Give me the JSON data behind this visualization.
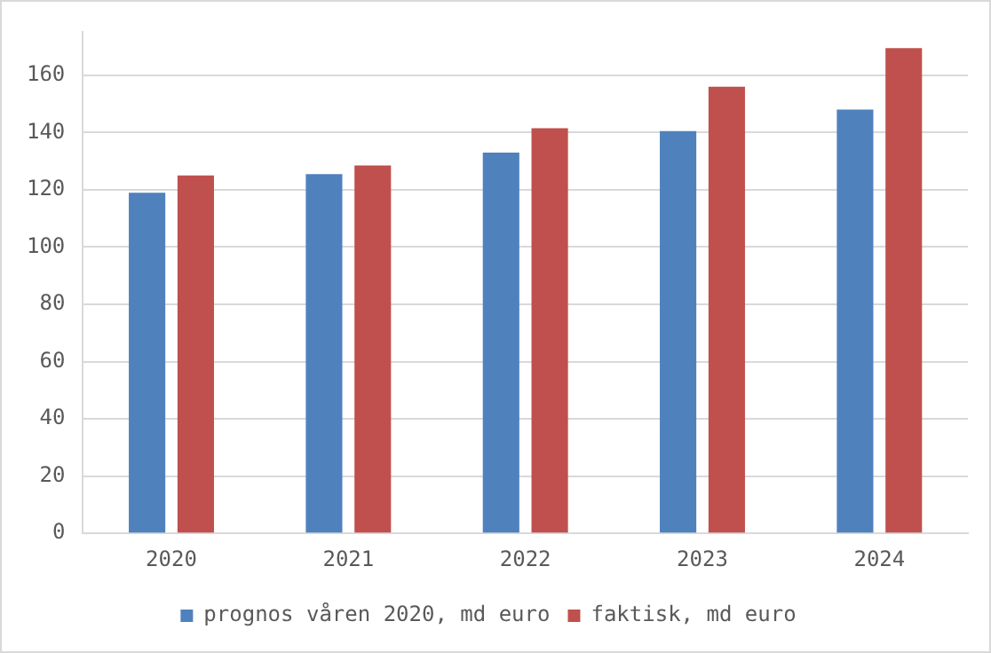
{
  "chart_data": {
    "type": "bar",
    "categories": [
      "2020",
      "2021",
      "2022",
      "2023",
      "2024"
    ],
    "series": [
      {
        "name": "prognos våren 2020, md euro",
        "color": "#4f81bd",
        "values": [
          119,
          125.5,
          133,
          140.5,
          148
        ]
      },
      {
        "name": "faktisk, md euro",
        "color": "#c0504d",
        "values": [
          125,
          128.5,
          141.5,
          156,
          169.5
        ]
      }
    ],
    "ylim": [
      0,
      175
    ],
    "yticks": [
      0,
      20,
      40,
      60,
      80,
      100,
      120,
      140,
      160
    ],
    "grid": "y",
    "legend": "bottom"
  }
}
